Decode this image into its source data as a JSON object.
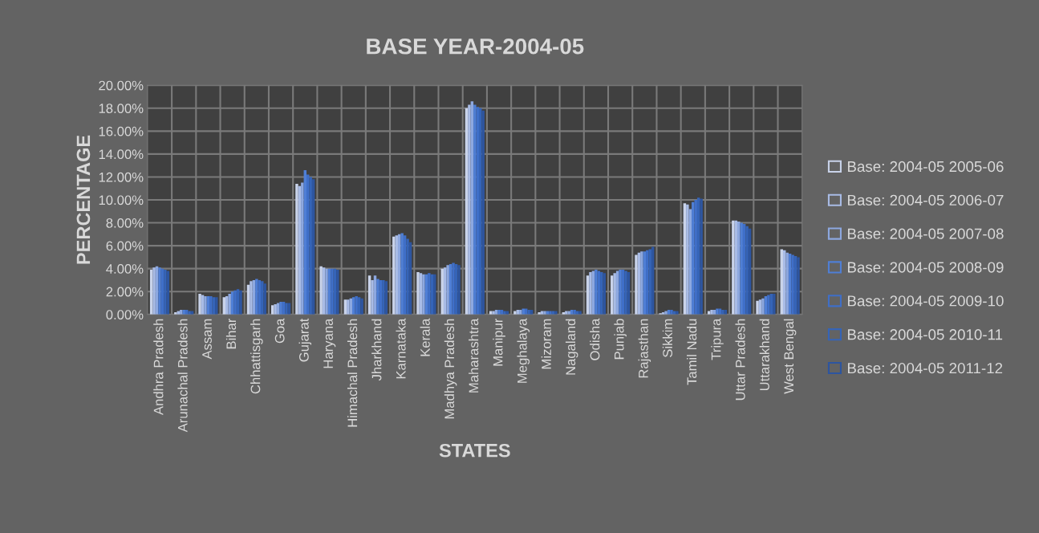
{
  "chart_data": {
    "type": "bar",
    "title": "BASE YEAR-2004-05",
    "xlabel": "STATES",
    "ylabel": "PERCENTAGE",
    "categories": [
      "Andhra Pradesh",
      "Arunachal Pradesh",
      "Assam",
      "Bihar",
      "Chhattisgarh",
      "Goa",
      "Gujarat",
      "Haryana",
      "Himachal Pradesh",
      "Jharkhand",
      "Karnataka",
      "Kerala",
      "Madhya Pradesh",
      "Maharashtra",
      "Manipur",
      "Meghalaya",
      "Mizoram",
      "Nagaland",
      "Odisha",
      "Punjab",
      "Rajasthan",
      "Sikkim",
      "Tamil Nadu",
      "Tripura",
      "Uttar Pradesh",
      "Uttarakhand",
      "West Bengal"
    ],
    "series": [
      {
        "name": "Base: 2004-05 2005-06",
        "color": "#c9d3ea",
        "values": [
          3.9,
          0.2,
          1.8,
          1.5,
          2.6,
          0.8,
          11.4,
          4.2,
          1.3,
          3.4,
          6.8,
          3.7,
          4.0,
          18.0,
          0.3,
          0.3,
          0.2,
          0.2,
          3.4,
          3.4,
          5.2,
          0.1,
          9.7,
          0.3,
          8.2,
          1.2,
          5.7
        ]
      },
      {
        "name": "Base: 2004-05 2006-07",
        "color": "#a9bce6",
        "values": [
          4.1,
          0.3,
          1.7,
          1.6,
          2.9,
          0.9,
          11.2,
          4.1,
          1.3,
          3.0,
          6.9,
          3.6,
          4.1,
          18.3,
          0.3,
          0.4,
          0.3,
          0.3,
          3.7,
          3.6,
          5.4,
          0.2,
          9.6,
          0.4,
          8.2,
          1.3,
          5.6
        ]
      },
      {
        "name": "Base: 2004-05 2007-08",
        "color": "#8da8e0",
        "values": [
          4.2,
          0.4,
          1.6,
          1.8,
          3.0,
          1.0,
          11.5,
          4.0,
          1.4,
          3.4,
          7.0,
          3.5,
          4.3,
          18.6,
          0.4,
          0.4,
          0.3,
          0.3,
          3.8,
          3.8,
          5.5,
          0.3,
          9.2,
          0.4,
          8.1,
          1.4,
          5.4
        ]
      },
      {
        "name": "Base: 2004-05 2008-09",
        "color": "#4f7fd6",
        "values": [
          4.1,
          0.4,
          1.6,
          2.0,
          3.1,
          1.1,
          12.6,
          4.0,
          1.5,
          3.1,
          7.1,
          3.5,
          4.4,
          18.3,
          0.4,
          0.5,
          0.3,
          0.4,
          3.9,
          3.9,
          5.5,
          0.4,
          9.8,
          0.5,
          8.0,
          1.6,
          5.3
        ]
      },
      {
        "name": "Base: 2004-05 2009-10",
        "color": "#3f6fc9",
        "values": [
          4.0,
          0.4,
          1.6,
          2.1,
          3.0,
          1.1,
          12.2,
          4.0,
          1.6,
          3.0,
          6.9,
          3.6,
          4.5,
          18.1,
          0.4,
          0.5,
          0.3,
          0.4,
          3.8,
          3.9,
          5.6,
          0.4,
          10.0,
          0.5,
          7.9,
          1.7,
          5.2
        ]
      },
      {
        "name": "Base: 2004-05 2010-11",
        "color": "#3564b8",
        "values": [
          3.9,
          0.3,
          1.5,
          2.2,
          2.9,
          1.0,
          12.0,
          4.0,
          1.5,
          3.0,
          6.6,
          3.5,
          4.4,
          18.0,
          0.3,
          0.4,
          0.3,
          0.3,
          3.7,
          3.8,
          5.7,
          0.3,
          10.2,
          0.4,
          7.7,
          1.8,
          5.1
        ]
      },
      {
        "name": "Base: 2004-05 2011-12",
        "color": "#2d55a0",
        "values": [
          3.8,
          0.3,
          1.5,
          2.1,
          2.7,
          1.0,
          11.8,
          3.9,
          1.4,
          2.9,
          6.3,
          3.5,
          4.3,
          17.8,
          0.3,
          0.4,
          0.3,
          0.3,
          3.6,
          3.7,
          5.9,
          0.3,
          10.1,
          0.4,
          7.5,
          1.8,
          5.0
        ]
      }
    ],
    "ylim": [
      0,
      20
    ],
    "yticks": [
      {
        "value": 0,
        "label": "0.00%"
      },
      {
        "value": 2,
        "label": "2.00%"
      },
      {
        "value": 4,
        "label": "4.00%"
      },
      {
        "value": 6,
        "label": "6.00%"
      },
      {
        "value": 8,
        "label": "8.00%"
      },
      {
        "value": 10,
        "label": "10.00%"
      },
      {
        "value": 12,
        "label": "12.00%"
      },
      {
        "value": 14,
        "label": "14.00%"
      },
      {
        "value": 16,
        "label": "16.00%"
      },
      {
        "value": 18,
        "label": "18.00%"
      },
      {
        "value": 20,
        "label": "20.00%"
      }
    ],
    "grid": true,
    "legend": "right"
  }
}
